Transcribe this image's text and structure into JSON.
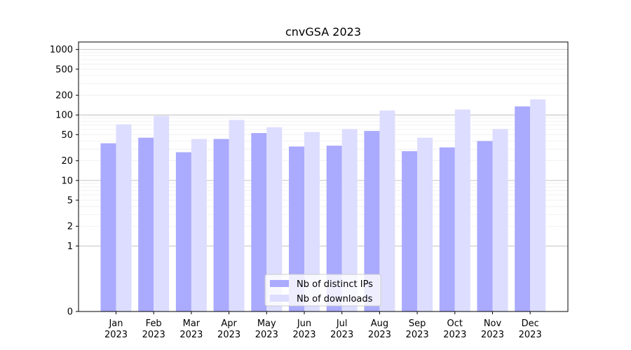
{
  "chart_data": {
    "type": "bar",
    "title": "cnvGSA 2023",
    "xlabel": "",
    "ylabel": "",
    "y_scale": "symlog",
    "ylim": [
      0,
      1300
    ],
    "y_ticks": [
      0,
      1,
      2,
      5,
      10,
      20,
      50,
      100,
      200,
      500,
      1000
    ],
    "grid": true,
    "legend_position": "bottom-center",
    "categories": [
      [
        "Jan",
        "2023"
      ],
      [
        "Feb",
        "2023"
      ],
      [
        "Mar",
        "2023"
      ],
      [
        "Apr",
        "2023"
      ],
      [
        "May",
        "2023"
      ],
      [
        "Jun",
        "2023"
      ],
      [
        "Jul",
        "2023"
      ],
      [
        "Aug",
        "2023"
      ],
      [
        "Sep",
        "2023"
      ],
      [
        "Oct",
        "2023"
      ],
      [
        "Nov",
        "2023"
      ],
      [
        "Dec",
        "2023"
      ]
    ],
    "series": [
      {
        "name": "Nb of distinct IPs",
        "color": "#aaaaff",
        "values": [
          37,
          45,
          27,
          43,
          53,
          33,
          34,
          57,
          28,
          32,
          40,
          135
        ]
      },
      {
        "name": "Nb of downloads",
        "color": "#ddddff",
        "values": [
          72,
          97,
          43,
          84,
          65,
          55,
          61,
          117,
          45,
          121,
          61,
          173
        ]
      }
    ]
  }
}
